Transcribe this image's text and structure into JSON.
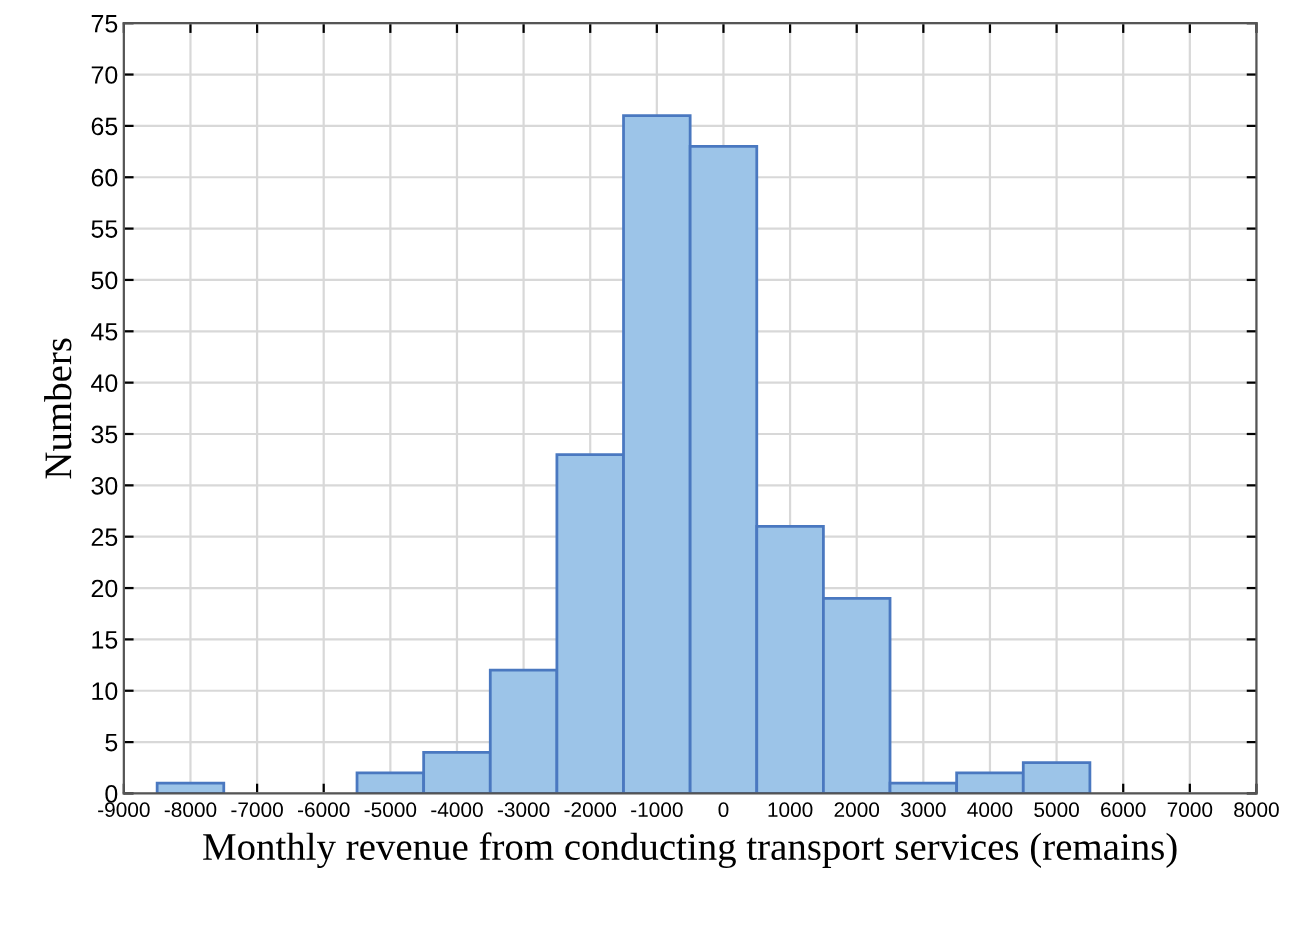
{
  "chart_data": {
    "type": "histogram",
    "xlabel": "Monthly revenue from conducting transport services (remains)",
    "ylabel": "Numbers",
    "bins": [
      -8500,
      -7500,
      -6500,
      -5500,
      -4500,
      -3500,
      -2500,
      -1500,
      -500,
      500,
      1500,
      2500,
      3500,
      4500,
      5500
    ],
    "values": [
      1,
      0,
      0,
      2,
      4,
      12,
      33,
      66,
      63,
      26,
      19,
      1,
      2,
      3
    ],
    "color": "#9cc4e8",
    "xlim": [
      -9000,
      8000
    ],
    "ylim": [
      0,
      75
    ],
    "xticks": [
      -9000,
      -8000,
      -7000,
      -6000,
      -5000,
      -4000,
      -3000,
      -2000,
      -1000,
      0,
      1000,
      2000,
      3000,
      4000,
      5000,
      6000,
      7000,
      8000
    ],
    "yticks": [
      0,
      5,
      10,
      15,
      20,
      25,
      30,
      35,
      40,
      45,
      50,
      55,
      60,
      65,
      70,
      75
    ],
    "grid": true
  }
}
